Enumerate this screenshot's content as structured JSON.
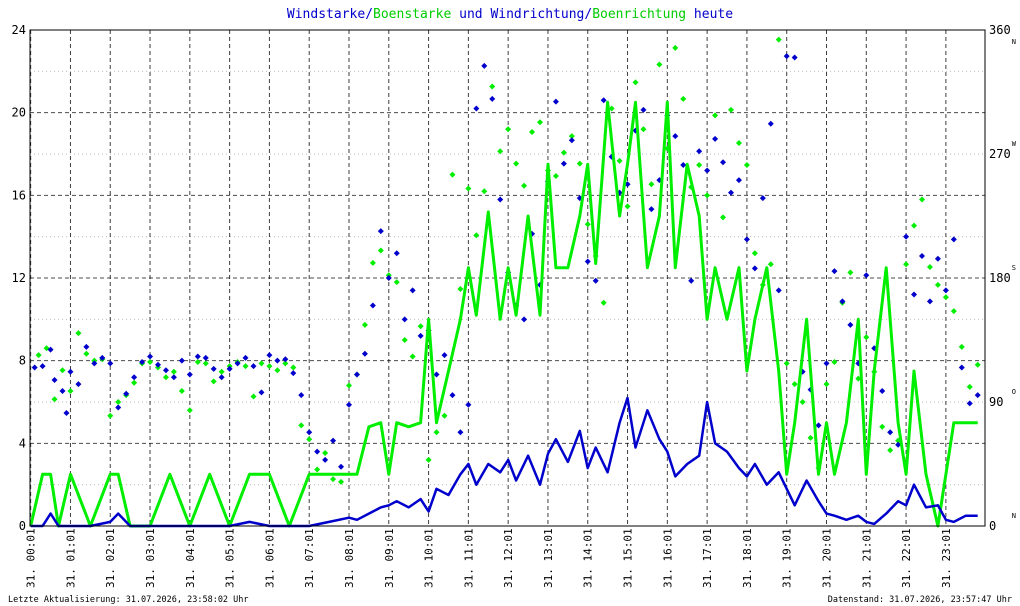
{
  "title": {
    "parts": [
      {
        "text": "Windstarke",
        "color": "#0000cc"
      },
      {
        "text": "/",
        "color": "#0000cc"
      },
      {
        "text": "Boenstarke",
        "color": "#00cc00"
      },
      {
        "text": " und ",
        "color": "#0000cc"
      },
      {
        "text": "Windrichtung",
        "color": "#0000cc"
      },
      {
        "text": "/",
        "color": "#0000cc"
      },
      {
        "text": "Boenrichtung",
        "color": "#00cc00"
      },
      {
        "text": " heute",
        "color": "#0000cc"
      }
    ]
  },
  "footer": {
    "left": "Letzte Aktualisierung: 31.07.2026, 23:58:02 Uhr",
    "right": "Datenstand: 31.07.2026, 23:57:47 Uhr"
  },
  "colors": {
    "wind": "#0000cc",
    "gust": "#00ee00",
    "grid": "#000000",
    "grid_dotted": "#999999"
  },
  "chart_data": {
    "type": "line",
    "x_tick_labels": [
      "31. 00:01",
      "31. 01:01",
      "31. 02:01",
      "31. 03:01",
      "31. 04:01",
      "31. 05:01",
      "31. 06:01",
      "31. 07:01",
      "31. 08:01",
      "31. 09:01",
      "31. 10:01",
      "31. 11:01",
      "31. 12:01",
      "31. 13:01",
      "31. 14:01",
      "31. 15:01",
      "31. 16:01",
      "31. 17:01",
      "31. 18:01",
      "31. 19:01",
      "31. 20:01",
      "31. 21:01",
      "31. 22:01",
      "31. 23:01"
    ],
    "ylim": [
      0,
      24
    ],
    "y_ticks": [
      "0",
      "4",
      "8",
      "12",
      "16",
      "20",
      "24"
    ],
    "y2lim": [
      0,
      360
    ],
    "y2_ticks": [
      {
        "value": 0,
        "label": "0",
        "dir": "N"
      },
      {
        "value": 90,
        "label": "90",
        "dir": "O"
      },
      {
        "value": 180,
        "label": "180",
        "dir": "S"
      },
      {
        "value": 270,
        "label": "270",
        "dir": "W"
      },
      {
        "value": 360,
        "label": "360",
        "dir": "N"
      }
    ],
    "hours_x": [
      0,
      0.3,
      0.5,
      0.7,
      1,
      1.5,
      2,
      2.2,
      2.5,
      3,
      3.5,
      4,
      4.5,
      5,
      5.5,
      6,
      6.5,
      7,
      7.5,
      8,
      8.2,
      8.5,
      8.8,
      9,
      9.2,
      9.5,
      9.8,
      10,
      10.2,
      10.5,
      10.8,
      11,
      11.2,
      11.5,
      11.8,
      12,
      12.2,
      12.5,
      12.8,
      13,
      13.2,
      13.5,
      13.8,
      14,
      14.2,
      14.5,
      14.8,
      15,
      15.2,
      15.5,
      15.8,
      16,
      16.2,
      16.5,
      16.8,
      17,
      17.2,
      17.5,
      17.8,
      18,
      18.2,
      18.5,
      18.8,
      19,
      19.2,
      19.5,
      19.8,
      20,
      20.2,
      20.5,
      20.8,
      21,
      21.2,
      21.5,
      21.8,
      22,
      22.2,
      22.5,
      22.8,
      23,
      23.2,
      23.5,
      23.8
    ],
    "series": [
      {
        "key": "wind_speed",
        "values": [
          0,
          0,
          0.6,
          0,
          0,
          0,
          0.2,
          0.6,
          0,
          0,
          0,
          0,
          0,
          0,
          0.2,
          0,
          0,
          0,
          0.2,
          0.4,
          0.3,
          0.6,
          0.9,
          1.0,
          1.2,
          0.9,
          1.3,
          0.7,
          1.8,
          1.5,
          2.5,
          3.0,
          2.0,
          3.0,
          2.6,
          3.2,
          2.2,
          3.4,
          2.0,
          3.5,
          4.2,
          3.1,
          4.6,
          2.8,
          3.8,
          2.6,
          5.0,
          6.2,
          3.8,
          5.6,
          4.2,
          3.6,
          2.4,
          3.0,
          3.4,
          6.0,
          4.0,
          3.6,
          2.8,
          2.4,
          3.0,
          2.0,
          2.6,
          1.8,
          1.0,
          2.2,
          1.2,
          0.6,
          0.5,
          0.3,
          0.5,
          0.2,
          0.1,
          0.6,
          1.2,
          1.0,
          2.0,
          0.9,
          1.0,
          0.3,
          0.2,
          0.5,
          0.5
        ]
      },
      {
        "key": "gust_speed",
        "values": [
          0,
          2.5,
          2.5,
          0,
          2.5,
          0,
          2.5,
          2.5,
          0,
          0,
          2.5,
          0,
          2.5,
          0,
          2.5,
          2.5,
          0,
          2.5,
          2.5,
          2.5,
          2.5,
          4.8,
          5.0,
          2.5,
          5.0,
          4.8,
          5.0,
          10.0,
          5.0,
          7.5,
          10.0,
          12.5,
          10.2,
          15.2,
          10.0,
          12.5,
          10.2,
          15.0,
          10.2,
          17.5,
          12.5,
          12.5,
          15.0,
          17.5,
          12.7,
          20.5,
          15.0,
          17.5,
          20.5,
          12.5,
          15.0,
          20.5,
          12.5,
          17.5,
          15.0,
          10.0,
          12.5,
          10.0,
          12.5,
          7.5,
          10.0,
          12.5,
          7.5,
          2.5,
          5.0,
          10.0,
          2.5,
          5.0,
          2.5,
          5.0,
          10.0,
          2.5,
          7.5,
          12.5,
          5.0,
          2.5,
          7.5,
          2.5,
          0,
          2.5,
          5.0,
          5.0,
          5.0
        ]
      },
      {
        "key": "wind_direction",
        "points": [
          [
            0.1,
            115
          ],
          [
            0.3,
            116
          ],
          [
            0.5,
            128
          ],
          [
            0.6,
            106
          ],
          [
            0.8,
            98
          ],
          [
            0.9,
            82
          ],
          [
            1.0,
            112
          ],
          [
            1.2,
            103
          ],
          [
            1.4,
            130
          ],
          [
            1.6,
            118
          ],
          [
            1.8,
            122
          ],
          [
            2.0,
            118
          ],
          [
            2.2,
            86
          ],
          [
            2.4,
            96
          ],
          [
            2.6,
            108
          ],
          [
            2.8,
            119
          ],
          [
            3.0,
            123
          ],
          [
            3.2,
            117
          ],
          [
            3.4,
            113
          ],
          [
            3.6,
            108
          ],
          [
            3.8,
            120
          ],
          [
            4.0,
            110
          ],
          [
            4.2,
            123
          ],
          [
            4.4,
            122
          ],
          [
            4.6,
            114
          ],
          [
            4.8,
            108
          ],
          [
            5.0,
            114
          ],
          [
            5.2,
            118
          ],
          [
            5.4,
            122
          ],
          [
            5.6,
            116
          ],
          [
            5.8,
            97
          ],
          [
            6.0,
            124
          ],
          [
            6.2,
            120
          ],
          [
            6.4,
            121
          ],
          [
            6.6,
            111
          ],
          [
            6.8,
            95
          ],
          [
            7.0,
            68
          ],
          [
            7.2,
            54
          ],
          [
            7.4,
            48
          ],
          [
            7.6,
            62
          ],
          [
            7.8,
            43
          ],
          [
            8.0,
            88
          ],
          [
            8.2,
            110
          ],
          [
            8.4,
            125
          ],
          [
            8.6,
            160
          ],
          [
            8.8,
            214
          ],
          [
            9.0,
            180
          ],
          [
            9.2,
            198
          ],
          [
            9.4,
            150
          ],
          [
            9.6,
            171
          ],
          [
            9.8,
            138
          ],
          [
            10.0,
            142
          ],
          [
            10.2,
            110
          ],
          [
            10.4,
            124
          ],
          [
            10.6,
            95
          ],
          [
            10.8,
            68
          ],
          [
            11.0,
            88
          ],
          [
            11.2,
            303
          ],
          [
            11.4,
            334
          ],
          [
            11.6,
            310
          ],
          [
            11.8,
            237
          ],
          [
            12.0,
            184
          ],
          [
            12.2,
            160
          ],
          [
            12.4,
            150
          ],
          [
            12.6,
            212
          ],
          [
            12.8,
            175
          ],
          [
            13.0,
            250
          ],
          [
            13.2,
            308
          ],
          [
            13.4,
            263
          ],
          [
            13.6,
            280
          ],
          [
            13.8,
            238
          ],
          [
            14.0,
            192
          ],
          [
            14.2,
            178
          ],
          [
            14.4,
            309
          ],
          [
            14.6,
            268
          ],
          [
            14.8,
            242
          ],
          [
            15.0,
            248
          ],
          [
            15.2,
            287
          ],
          [
            15.4,
            302
          ],
          [
            15.6,
            230
          ],
          [
            15.8,
            251
          ],
          [
            16.0,
            298
          ],
          [
            16.2,
            283
          ],
          [
            16.4,
            262
          ],
          [
            16.6,
            178
          ],
          [
            16.8,
            272
          ],
          [
            17.0,
            258
          ],
          [
            17.2,
            281
          ],
          [
            17.4,
            264
          ],
          [
            17.6,
            242
          ],
          [
            17.8,
            251
          ],
          [
            18.0,
            208
          ],
          [
            18.2,
            187
          ],
          [
            18.4,
            238
          ],
          [
            18.6,
            292
          ],
          [
            18.8,
            171
          ],
          [
            19.0,
            341
          ],
          [
            19.2,
            340
          ],
          [
            19.4,
            112
          ],
          [
            19.6,
            99
          ],
          [
            19.8,
            73
          ],
          [
            20.0,
            118
          ],
          [
            20.2,
            185
          ],
          [
            20.4,
            163
          ],
          [
            20.6,
            146
          ],
          [
            20.8,
            118
          ],
          [
            21.0,
            182
          ],
          [
            21.2,
            129
          ],
          [
            21.4,
            98
          ],
          [
            21.6,
            68
          ],
          [
            21.8,
            59
          ],
          [
            22.0,
            210
          ],
          [
            22.2,
            168
          ],
          [
            22.4,
            196
          ],
          [
            22.6,
            163
          ],
          [
            22.8,
            194
          ],
          [
            23.0,
            171
          ],
          [
            23.2,
            208
          ],
          [
            23.4,
            115
          ],
          [
            23.6,
            89
          ],
          [
            23.8,
            95
          ]
        ]
      },
      {
        "key": "gust_direction",
        "points": [
          [
            0.2,
            124
          ],
          [
            0.4,
            129
          ],
          [
            0.6,
            92
          ],
          [
            0.8,
            113
          ],
          [
            1.0,
            98
          ],
          [
            1.2,
            140
          ],
          [
            1.4,
            125
          ],
          [
            1.6,
            120
          ],
          [
            1.8,
            121
          ],
          [
            2.0,
            80
          ],
          [
            2.2,
            90
          ],
          [
            2.4,
            95
          ],
          [
            2.6,
            104
          ],
          [
            2.8,
            118
          ],
          [
            3.0,
            119
          ],
          [
            3.2,
            115
          ],
          [
            3.4,
            108
          ],
          [
            3.6,
            112
          ],
          [
            3.8,
            98
          ],
          [
            4.0,
            84
          ],
          [
            4.2,
            119
          ],
          [
            4.4,
            118
          ],
          [
            4.6,
            105
          ],
          [
            4.8,
            112
          ],
          [
            5.0,
            116
          ],
          [
            5.2,
            119
          ],
          [
            5.4,
            116
          ],
          [
            5.6,
            94
          ],
          [
            5.8,
            118
          ],
          [
            6.0,
            116
          ],
          [
            6.2,
            113
          ],
          [
            6.4,
            118
          ],
          [
            6.6,
            115
          ],
          [
            6.8,
            73
          ],
          [
            7.0,
            63
          ],
          [
            7.2,
            41
          ],
          [
            7.4,
            53
          ],
          [
            7.6,
            34
          ],
          [
            7.8,
            32
          ],
          [
            8.0,
            102
          ],
          [
            8.2,
            110
          ],
          [
            8.4,
            146
          ],
          [
            8.6,
            191
          ],
          [
            8.8,
            200
          ],
          [
            9.0,
            182
          ],
          [
            9.2,
            177
          ],
          [
            9.4,
            135
          ],
          [
            9.6,
            123
          ],
          [
            9.8,
            145
          ],
          [
            10.0,
            48
          ],
          [
            10.2,
            68
          ],
          [
            10.4,
            80
          ],
          [
            10.6,
            255
          ],
          [
            10.8,
            172
          ],
          [
            11.0,
            245
          ],
          [
            11.2,
            211
          ],
          [
            11.4,
            243
          ],
          [
            11.6,
            319
          ],
          [
            11.8,
            272
          ],
          [
            12.0,
            288
          ],
          [
            12.2,
            263
          ],
          [
            12.4,
            247
          ],
          [
            12.6,
            286
          ],
          [
            12.8,
            293
          ],
          [
            13.0,
            258
          ],
          [
            13.2,
            254
          ],
          [
            13.4,
            271
          ],
          [
            13.6,
            283
          ],
          [
            13.8,
            263
          ],
          [
            14.0,
            219
          ],
          [
            14.2,
            196
          ],
          [
            14.4,
            162
          ],
          [
            14.6,
            303
          ],
          [
            14.8,
            265
          ],
          [
            15.0,
            232
          ],
          [
            15.2,
            322
          ],
          [
            15.4,
            288
          ],
          [
            15.6,
            248
          ],
          [
            15.8,
            335
          ],
          [
            16.0,
            274
          ],
          [
            16.2,
            347
          ],
          [
            16.4,
            310
          ],
          [
            16.6,
            246
          ],
          [
            16.8,
            262
          ],
          [
            17.0,
            240
          ],
          [
            17.2,
            298
          ],
          [
            17.4,
            224
          ],
          [
            17.6,
            302
          ],
          [
            17.8,
            278
          ],
          [
            18.0,
            262
          ],
          [
            18.2,
            198
          ],
          [
            18.4,
            175
          ],
          [
            18.6,
            190
          ],
          [
            18.8,
            353
          ],
          [
            19.0,
            118
          ],
          [
            19.2,
            103
          ],
          [
            19.4,
            90
          ],
          [
            19.6,
            64
          ],
          [
            19.8,
            42
          ],
          [
            20.0,
            103
          ],
          [
            20.2,
            119
          ],
          [
            20.4,
            162
          ],
          [
            20.6,
            184
          ],
          [
            20.8,
            107
          ],
          [
            21.0,
            137
          ],
          [
            21.2,
            112
          ],
          [
            21.4,
            72
          ],
          [
            21.6,
            55
          ],
          [
            21.8,
            62
          ],
          [
            22.0,
            190
          ],
          [
            22.2,
            218
          ],
          [
            22.4,
            237
          ],
          [
            22.6,
            188
          ],
          [
            22.8,
            175
          ],
          [
            23.0,
            166
          ],
          [
            23.2,
            156
          ],
          [
            23.4,
            130
          ],
          [
            23.6,
            101
          ],
          [
            23.8,
            117
          ]
        ]
      }
    ]
  }
}
